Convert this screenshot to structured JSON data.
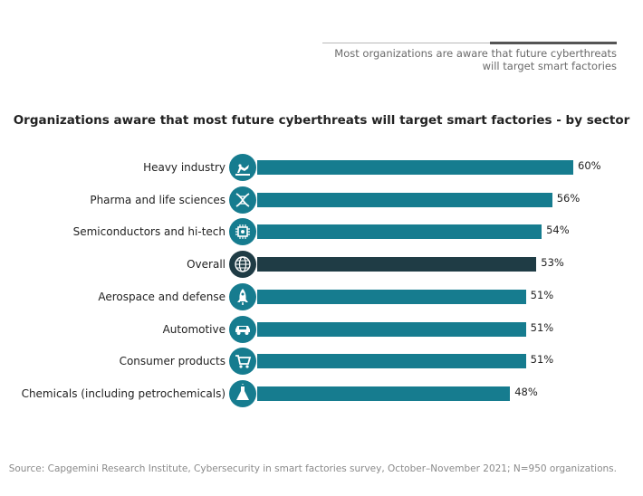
{
  "header": {
    "caption_line1": "Most organizations are aware that future cyberthreats",
    "caption_line2": "will target smart factories"
  },
  "colors": {
    "bar_sector": "#167c8f",
    "bar_overall": "#1f3c45",
    "icon_sector": "#167c8f",
    "icon_overall": "#1f3c45"
  },
  "chart_data": {
    "type": "bar",
    "orientation": "horizontal",
    "title": "Organizations aware that most future cyberthreats will target smart factories - by sector",
    "categories": [
      "Heavy industry",
      "Pharma and life sciences",
      "Semiconductors and hi-tech",
      "Overall",
      "Aerospace and defense",
      "Automotive",
      "Consumer products",
      "Chemicals (including petrochemicals)"
    ],
    "values": [
      60,
      56,
      54,
      53,
      51,
      51,
      51,
      48
    ],
    "value_labels": [
      "60%",
      "56%",
      "54%",
      "53%",
      "51%",
      "51%",
      "51%",
      "48%"
    ],
    "icons": [
      "factory-robot-icon",
      "dna-icon",
      "chip-icon",
      "globe-icon",
      "rocket-icon",
      "car-icon",
      "cart-icon",
      "flask-icon"
    ],
    "highlight": "Overall",
    "unit": "%",
    "xlim": [
      0,
      60
    ],
    "xlabel": "",
    "ylabel": "",
    "grid": false,
    "legend": "none"
  },
  "source": "Source: Capgemini Research Institute, Cybersecurity in smart factories survey, October–November 2021; N=950 organizations."
}
